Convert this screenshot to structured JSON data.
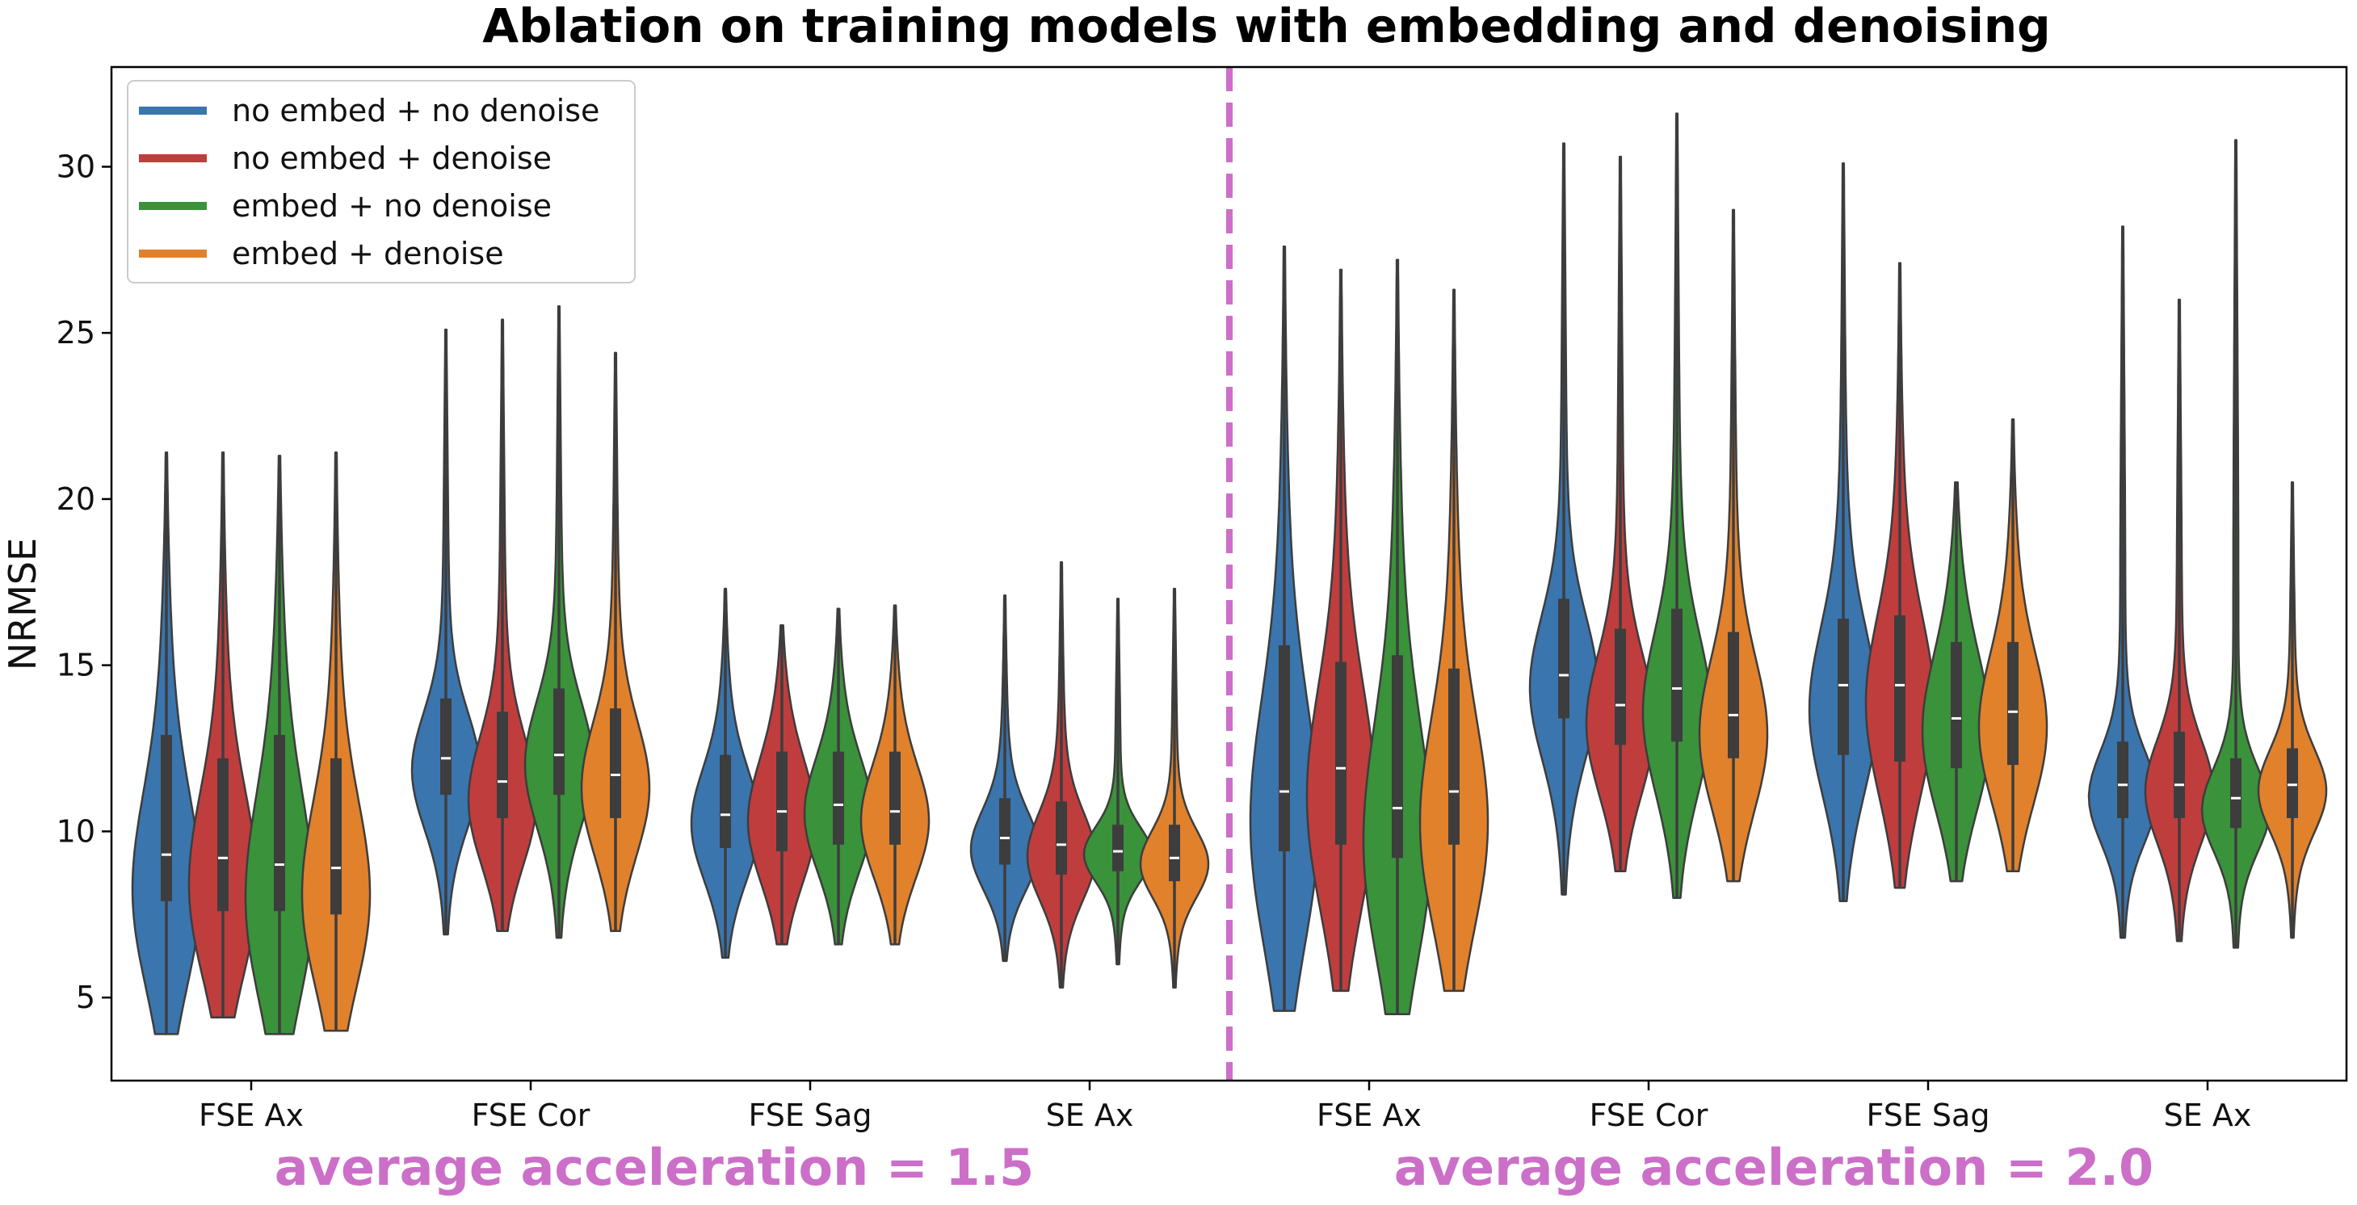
{
  "chart_data": {
    "type": "violin",
    "title": "Ablation on training models with embedding and denoising",
    "ylabel": "NRMSE",
    "xlabel": "",
    "ylim": [
      2.5,
      33
    ],
    "yticks": [
      5,
      10,
      15,
      20,
      25,
      30
    ],
    "categories": [
      "FSE Ax",
      "FSE Cor",
      "FSE Sag",
      "SE Ax",
      "FSE Ax",
      "FSE Cor",
      "FSE Sag",
      "SE Ax"
    ],
    "group_captions": [
      "average acceleration = 1.5",
      "average acceleration = 2.0"
    ],
    "divider_after_category_index": 3,
    "legend_location": "upper-left",
    "series": [
      {
        "name": "no embed + no denoise",
        "color": "#3a75ae",
        "stats": [
          {
            "min": 3.9,
            "q1": 7.9,
            "median": 9.3,
            "q3": 12.9,
            "max": 21.4,
            "mode": 8.2
          },
          {
            "min": 6.9,
            "q1": 11.1,
            "median": 12.2,
            "q3": 14.0,
            "max": 25.1,
            "mode": 11.8
          },
          {
            "min": 6.2,
            "q1": 9.5,
            "median": 10.5,
            "q3": 12.3,
            "max": 17.3,
            "mode": 10.2
          },
          {
            "min": 6.1,
            "q1": 9.0,
            "median": 9.8,
            "q3": 11.0,
            "max": 17.1,
            "mode": 9.4
          },
          {
            "min": 4.6,
            "q1": 9.4,
            "median": 11.2,
            "q3": 15.6,
            "max": 27.6,
            "mode": 10.3
          },
          {
            "min": 8.1,
            "q1": 13.4,
            "median": 14.7,
            "q3": 17.0,
            "max": 30.7,
            "mode": 14.3
          },
          {
            "min": 7.9,
            "q1": 12.3,
            "median": 14.4,
            "q3": 16.4,
            "max": 30.1,
            "mode": 13.6
          },
          {
            "min": 6.8,
            "q1": 10.4,
            "median": 11.4,
            "q3": 12.7,
            "max": 28.2,
            "mode": 11.0
          }
        ]
      },
      {
        "name": "no embed + denoise",
        "color": "#c03d3e",
        "stats": [
          {
            "min": 4.4,
            "q1": 7.6,
            "median": 9.2,
            "q3": 12.2,
            "max": 21.4,
            "mode": 8.4
          },
          {
            "min": 7.0,
            "q1": 10.4,
            "median": 11.5,
            "q3": 13.6,
            "max": 25.4,
            "mode": 10.9
          },
          {
            "min": 6.6,
            "q1": 9.4,
            "median": 10.6,
            "q3": 12.4,
            "max": 16.2,
            "mode": 10.3
          },
          {
            "min": 5.3,
            "q1": 8.7,
            "median": 9.6,
            "q3": 10.9,
            "max": 18.1,
            "mode": 9.2
          },
          {
            "min": 5.2,
            "q1": 9.6,
            "median": 11.9,
            "q3": 15.1,
            "max": 26.9,
            "mode": 11.0
          },
          {
            "min": 8.8,
            "q1": 12.6,
            "median": 13.8,
            "q3": 16.1,
            "max": 30.3,
            "mode": 13.2
          },
          {
            "min": 8.3,
            "q1": 12.1,
            "median": 14.4,
            "q3": 16.5,
            "max": 27.1,
            "mode": 13.8
          },
          {
            "min": 6.7,
            "q1": 10.4,
            "median": 11.4,
            "q3": 13.0,
            "max": 26.0,
            "mode": 11.2
          }
        ]
      },
      {
        "name": "embed + no denoise",
        "color": "#3a923a",
        "stats": [
          {
            "min": 3.9,
            "q1": 7.6,
            "median": 9.0,
            "q3": 12.9,
            "max": 21.3,
            "mode": 8.0
          },
          {
            "min": 6.8,
            "q1": 11.1,
            "median": 12.3,
            "q3": 14.3,
            "max": 25.8,
            "mode": 12.0
          },
          {
            "min": 6.6,
            "q1": 9.6,
            "median": 10.8,
            "q3": 12.4,
            "max": 16.7,
            "mode": 10.5
          },
          {
            "min": 6.0,
            "q1": 8.8,
            "median": 9.4,
            "q3": 10.2,
            "max": 17.0,
            "mode": 9.3
          },
          {
            "min": 4.5,
            "q1": 9.2,
            "median": 10.7,
            "q3": 15.3,
            "max": 27.2,
            "mode": 9.7
          },
          {
            "min": 8.0,
            "q1": 12.7,
            "median": 14.3,
            "q3": 16.7,
            "max": 31.6,
            "mode": 13.5
          },
          {
            "min": 8.5,
            "q1": 11.9,
            "median": 13.4,
            "q3": 15.7,
            "max": 20.5,
            "mode": 13.0
          },
          {
            "min": 6.5,
            "q1": 10.1,
            "median": 11.0,
            "q3": 12.2,
            "max": 30.8,
            "mode": 10.6
          }
        ]
      },
      {
        "name": "embed + denoise",
        "color": "#e1812c",
        "stats": [
          {
            "min": 4.0,
            "q1": 7.5,
            "median": 8.9,
            "q3": 12.2,
            "max": 21.4,
            "mode": 8.1
          },
          {
            "min": 7.0,
            "q1": 10.4,
            "median": 11.7,
            "q3": 13.7,
            "max": 24.4,
            "mode": 11.3
          },
          {
            "min": 6.6,
            "q1": 9.6,
            "median": 10.6,
            "q3": 12.4,
            "max": 16.8,
            "mode": 10.3
          },
          {
            "min": 5.3,
            "q1": 8.5,
            "median": 9.2,
            "q3": 10.2,
            "max": 17.3,
            "mode": 9.0
          },
          {
            "min": 5.2,
            "q1": 9.6,
            "median": 11.2,
            "q3": 14.9,
            "max": 26.3,
            "mode": 10.2
          },
          {
            "min": 8.5,
            "q1": 12.2,
            "median": 13.5,
            "q3": 16.0,
            "max": 28.7,
            "mode": 12.9
          },
          {
            "min": 8.8,
            "q1": 12.0,
            "median": 13.6,
            "q3": 15.7,
            "max": 22.4,
            "mode": 13.1
          },
          {
            "min": 6.8,
            "q1": 10.4,
            "median": 11.4,
            "q3": 12.5,
            "max": 20.5,
            "mode": 11.2
          }
        ]
      }
    ]
  },
  "colors": {
    "divider": "#cc6fc8",
    "caption": "#cc6fc8",
    "axis": "#000000",
    "inner_box": "#3d3d3d",
    "violin_edge": "#3d3d3d"
  }
}
